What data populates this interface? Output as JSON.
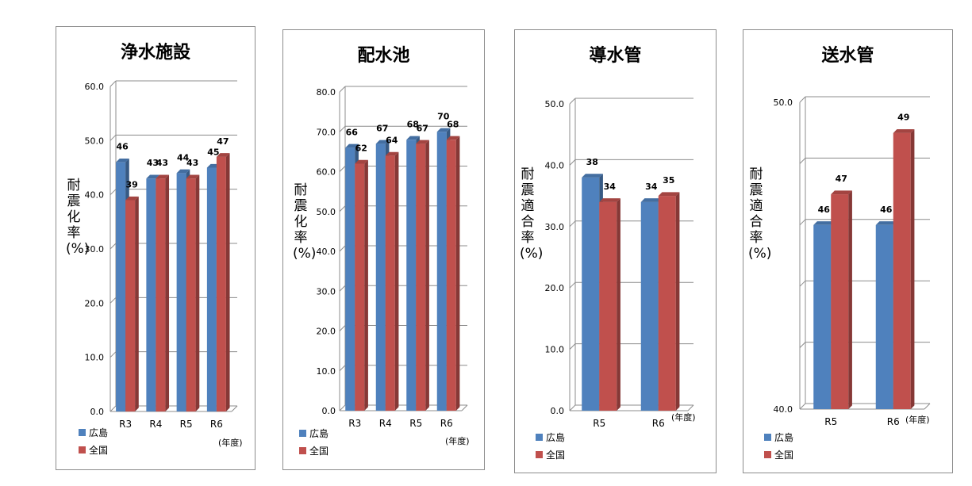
{
  "colors": {
    "hiroshima": "#4f81bd",
    "national": "#c0504d"
  },
  "legend": {
    "hiroshima": "広島",
    "national": "全国"
  },
  "chart_data": [
    {
      "type": "bar",
      "title": "浄水施設",
      "ylabel": "耐震化率(%)",
      "xunit": "(年度)",
      "categories": [
        "R3",
        "R4",
        "R5",
        "R6"
      ],
      "ylim": [
        0,
        60
      ],
      "yticks": [
        "0.0",
        "10.0",
        "20.0",
        "30.0",
        "40.0",
        "50.0",
        "60.0"
      ],
      "series": [
        {
          "name": "広島",
          "values": [
            46,
            43,
            44,
            45
          ]
        },
        {
          "name": "全国",
          "values": [
            39,
            43,
            43,
            47
          ]
        }
      ]
    },
    {
      "type": "bar",
      "title": "配水池",
      "ylabel": "耐震化率(%)",
      "xunit": "(年度)",
      "categories": [
        "R3",
        "R4",
        "R5",
        "R6"
      ],
      "ylim": [
        0,
        80
      ],
      "yticks": [
        "0.0",
        "10.0",
        "20.0",
        "30.0",
        "40.0",
        "50.0",
        "60.0",
        "70.0",
        "80.0"
      ],
      "series": [
        {
          "name": "広島",
          "values": [
            66,
            67,
            68,
            70
          ]
        },
        {
          "name": "全国",
          "values": [
            62,
            64,
            67,
            68
          ]
        }
      ]
    },
    {
      "type": "bar",
      "title": "導水管",
      "ylabel": "耐震適合率(%)",
      "xunit": "(年度)",
      "categories": [
        "R5",
        "R6"
      ],
      "ylim": [
        0,
        50
      ],
      "yticks": [
        "0.0",
        "10.0",
        "20.0",
        "30.0",
        "40.0",
        "50.0"
      ],
      "series": [
        {
          "name": "広島",
          "values": [
            38,
            34
          ]
        },
        {
          "name": "全国",
          "values": [
            34,
            35
          ]
        }
      ]
    },
    {
      "type": "bar",
      "title": "送水管",
      "ylabel": "耐震適合率(%)",
      "xunit": "(年度)",
      "categories": [
        "R5",
        "R6"
      ],
      "ylim": [
        40,
        50
      ],
      "yticks": [
        "40.0",
        "",
        "",
        "",
        "",
        "50.0"
      ],
      "series": [
        {
          "name": "広島",
          "values": [
            46,
            46
          ]
        },
        {
          "name": "全国",
          "values": [
            47,
            49
          ]
        }
      ]
    }
  ]
}
